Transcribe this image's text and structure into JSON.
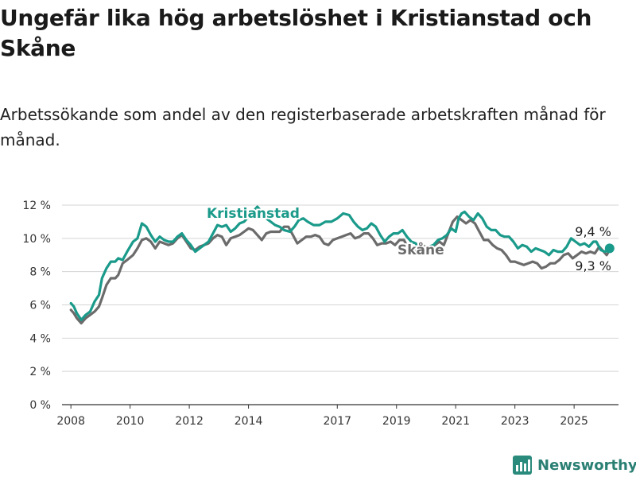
{
  "title": "Ungefär lika hög arbetslöshet i Kristianstad och Skåne",
  "subtitle": "Arbetssökande som andel av den registerbaserade arbetskraften månad för månad.",
  "brand": {
    "name": "Newsworthy",
    "icon": "newsworthy-chart-logo",
    "color": "#2a8a7c"
  },
  "chart_data": {
    "type": "line",
    "title": "Ungefär lika hög arbetslöshet i Kristianstad och Skåne",
    "subtitle": "Arbetssökande som andel av den registerbaserade arbetskraften månad för månad.",
    "xlabel": "",
    "ylabel": "",
    "x_range": [
      2007.7,
      2026.5
    ],
    "ylim": [
      0,
      12
    ],
    "y_ticks": [
      0,
      2,
      4,
      6,
      8,
      10,
      12
    ],
    "y_tick_labels": [
      "0 %",
      "2 %",
      "4 %",
      "6 %",
      "8 %",
      "10 %",
      "12 %"
    ],
    "x_ticks": [
      2008,
      2010,
      2012,
      2014,
      2017,
      2019,
      2021,
      2023,
      2025
    ],
    "x_tick_labels": [
      "2008",
      "2010",
      "2012",
      "2014",
      "2017",
      "2019",
      "2021",
      "2023",
      "2025"
    ],
    "grid": "horizontal",
    "legend": "direct labels",
    "series": [
      {
        "name": "Kristianstad",
        "color": "#1a9a8a",
        "end_label": "9,4 %",
        "points": [
          [
            2008.0,
            6.1
          ],
          [
            2008.1,
            5.9
          ],
          [
            2008.2,
            5.5
          ],
          [
            2008.35,
            5.1
          ],
          [
            2008.5,
            5.4
          ],
          [
            2008.65,
            5.6
          ],
          [
            2008.8,
            6.2
          ],
          [
            2008.95,
            6.6
          ],
          [
            2009.05,
            7.6
          ],
          [
            2009.2,
            8.2
          ],
          [
            2009.35,
            8.6
          ],
          [
            2009.5,
            8.6
          ],
          [
            2009.6,
            8.8
          ],
          [
            2009.75,
            8.7
          ],
          [
            2009.9,
            9.2
          ],
          [
            2010.1,
            9.8
          ],
          [
            2010.25,
            10.0
          ],
          [
            2010.4,
            10.9
          ],
          [
            2010.55,
            10.7
          ],
          [
            2010.7,
            10.2
          ],
          [
            2010.85,
            9.8
          ],
          [
            2011.0,
            10.1
          ],
          [
            2011.15,
            9.9
          ],
          [
            2011.3,
            9.8
          ],
          [
            2011.45,
            9.8
          ],
          [
            2011.6,
            10.1
          ],
          [
            2011.75,
            10.3
          ],
          [
            2011.9,
            9.9
          ],
          [
            2012.05,
            9.6
          ],
          [
            2012.2,
            9.2
          ],
          [
            2012.35,
            9.4
          ],
          [
            2012.5,
            9.6
          ],
          [
            2012.65,
            9.8
          ],
          [
            2012.8,
            10.3
          ],
          [
            2012.95,
            10.8
          ],
          [
            2013.1,
            10.7
          ],
          [
            2013.25,
            10.8
          ],
          [
            2013.4,
            10.4
          ],
          [
            2013.55,
            10.6
          ],
          [
            2013.7,
            10.9
          ],
          [
            2013.85,
            11.0
          ],
          [
            2014.0,
            11.3
          ],
          [
            2014.15,
            11.6
          ],
          [
            2014.3,
            11.9
          ],
          [
            2014.45,
            11.6
          ],
          [
            2014.6,
            11.2
          ],
          [
            2014.75,
            11.0
          ],
          [
            2014.9,
            10.8
          ],
          [
            2015.05,
            10.7
          ],
          [
            2015.2,
            10.5
          ],
          [
            2015.4,
            10.4
          ],
          [
            2015.55,
            10.7
          ],
          [
            2015.7,
            11.1
          ],
          [
            2015.85,
            11.2
          ],
          [
            2016.0,
            11.0
          ],
          [
            2016.2,
            10.8
          ],
          [
            2016.4,
            10.8
          ],
          [
            2016.6,
            11.0
          ],
          [
            2016.8,
            11.0
          ],
          [
            2017.0,
            11.2
          ],
          [
            2017.2,
            11.5
          ],
          [
            2017.4,
            11.4
          ],
          [
            2017.55,
            11.0
          ],
          [
            2017.7,
            10.7
          ],
          [
            2017.85,
            10.5
          ],
          [
            2018.0,
            10.6
          ],
          [
            2018.15,
            10.9
          ],
          [
            2018.3,
            10.7
          ],
          [
            2018.45,
            10.2
          ],
          [
            2018.6,
            9.8
          ],
          [
            2018.75,
            10.1
          ],
          [
            2018.9,
            10.3
          ],
          [
            2019.05,
            10.3
          ],
          [
            2019.2,
            10.5
          ],
          [
            2019.35,
            10.1
          ],
          [
            2019.5,
            9.8
          ],
          [
            2019.65,
            9.7
          ],
          [
            2019.8,
            9.3
          ],
          [
            2019.95,
            9.4
          ],
          [
            2020.1,
            9.5
          ],
          [
            2020.25,
            9.6
          ],
          [
            2020.4,
            9.9
          ],
          [
            2020.55,
            10.0
          ],
          [
            2020.7,
            10.2
          ],
          [
            2020.85,
            10.6
          ],
          [
            2021.0,
            10.4
          ],
          [
            2021.1,
            11.2
          ],
          [
            2021.2,
            11.5
          ],
          [
            2021.3,
            11.6
          ],
          [
            2021.45,
            11.3
          ],
          [
            2021.6,
            11.1
          ],
          [
            2021.75,
            11.5
          ],
          [
            2021.9,
            11.2
          ],
          [
            2022.05,
            10.7
          ],
          [
            2022.2,
            10.5
          ],
          [
            2022.35,
            10.5
          ],
          [
            2022.5,
            10.2
          ],
          [
            2022.65,
            10.1
          ],
          [
            2022.8,
            10.1
          ],
          [
            2022.95,
            9.8
          ],
          [
            2023.1,
            9.4
          ],
          [
            2023.25,
            9.6
          ],
          [
            2023.4,
            9.5
          ],
          [
            2023.55,
            9.2
          ],
          [
            2023.7,
            9.4
          ],
          [
            2023.85,
            9.3
          ],
          [
            2024.0,
            9.2
          ],
          [
            2024.15,
            9.0
          ],
          [
            2024.3,
            9.3
          ],
          [
            2024.45,
            9.2
          ],
          [
            2024.6,
            9.2
          ],
          [
            2024.75,
            9.5
          ],
          [
            2024.9,
            10.0
          ],
          [
            2025.05,
            9.8
          ],
          [
            2025.2,
            9.6
          ],
          [
            2025.35,
            9.7
          ],
          [
            2025.5,
            9.5
          ],
          [
            2025.65,
            9.8
          ],
          [
            2025.75,
            9.8
          ],
          [
            2025.9,
            9.3
          ],
          [
            2026.05,
            9.2
          ],
          [
            2026.2,
            9.4
          ]
        ]
      },
      {
        "name": "Skåne",
        "color": "#6b6b6b",
        "end_label": "9,3 %",
        "points": [
          [
            2008.0,
            5.7
          ],
          [
            2008.1,
            5.5
          ],
          [
            2008.2,
            5.2
          ],
          [
            2008.35,
            4.9
          ],
          [
            2008.5,
            5.2
          ],
          [
            2008.65,
            5.4
          ],
          [
            2008.8,
            5.6
          ],
          [
            2008.95,
            5.9
          ],
          [
            2009.05,
            6.4
          ],
          [
            2009.2,
            7.2
          ],
          [
            2009.35,
            7.6
          ],
          [
            2009.5,
            7.6
          ],
          [
            2009.6,
            7.8
          ],
          [
            2009.75,
            8.5
          ],
          [
            2009.9,
            8.7
          ],
          [
            2010.1,
            9.0
          ],
          [
            2010.25,
            9.4
          ],
          [
            2010.4,
            9.9
          ],
          [
            2010.55,
            10.0
          ],
          [
            2010.7,
            9.8
          ],
          [
            2010.85,
            9.4
          ],
          [
            2011.0,
            9.8
          ],
          [
            2011.15,
            9.7
          ],
          [
            2011.3,
            9.6
          ],
          [
            2011.45,
            9.7
          ],
          [
            2011.6,
            10.0
          ],
          [
            2011.75,
            10.2
          ],
          [
            2011.9,
            9.8
          ],
          [
            2012.05,
            9.4
          ],
          [
            2012.2,
            9.3
          ],
          [
            2012.35,
            9.5
          ],
          [
            2012.5,
            9.6
          ],
          [
            2012.65,
            9.7
          ],
          [
            2012.8,
            10.0
          ],
          [
            2012.95,
            10.2
          ],
          [
            2013.1,
            10.1
          ],
          [
            2013.25,
            9.6
          ],
          [
            2013.4,
            10.0
          ],
          [
            2013.55,
            10.1
          ],
          [
            2013.7,
            10.2
          ],
          [
            2013.85,
            10.4
          ],
          [
            2014.0,
            10.6
          ],
          [
            2014.15,
            10.5
          ],
          [
            2014.3,
            10.2
          ],
          [
            2014.45,
            9.9
          ],
          [
            2014.6,
            10.3
          ],
          [
            2014.75,
            10.4
          ],
          [
            2014.9,
            10.4
          ],
          [
            2015.05,
            10.4
          ],
          [
            2015.2,
            10.7
          ],
          [
            2015.35,
            10.7
          ],
          [
            2015.5,
            10.2
          ],
          [
            2015.65,
            9.7
          ],
          [
            2015.8,
            9.9
          ],
          [
            2015.95,
            10.1
          ],
          [
            2016.1,
            10.1
          ],
          [
            2016.25,
            10.2
          ],
          [
            2016.4,
            10.1
          ],
          [
            2016.55,
            9.7
          ],
          [
            2016.7,
            9.6
          ],
          [
            2016.85,
            9.9
          ],
          [
            2017.0,
            10.0
          ],
          [
            2017.15,
            10.1
          ],
          [
            2017.3,
            10.2
          ],
          [
            2017.45,
            10.3
          ],
          [
            2017.6,
            10.0
          ],
          [
            2017.75,
            10.1
          ],
          [
            2017.9,
            10.3
          ],
          [
            2018.05,
            10.3
          ],
          [
            2018.2,
            10.0
          ],
          [
            2018.35,
            9.6
          ],
          [
            2018.5,
            9.7
          ],
          [
            2018.65,
            9.7
          ],
          [
            2018.8,
            9.8
          ],
          [
            2018.95,
            9.6
          ],
          [
            2019.1,
            9.9
          ],
          [
            2019.25,
            9.9
          ],
          [
            2019.4,
            9.4
          ],
          [
            2019.55,
            9.3
          ],
          [
            2019.7,
            9.2
          ],
          [
            2019.85,
            9.6
          ],
          [
            2020.0,
            9.5
          ],
          [
            2020.15,
            9.4
          ],
          [
            2020.3,
            9.6
          ],
          [
            2020.45,
            9.8
          ],
          [
            2020.6,
            9.6
          ],
          [
            2020.75,
            10.3
          ],
          [
            2020.9,
            11.0
          ],
          [
            2021.05,
            11.3
          ],
          [
            2021.2,
            11.1
          ],
          [
            2021.35,
            10.9
          ],
          [
            2021.5,
            11.1
          ],
          [
            2021.65,
            10.9
          ],
          [
            2021.8,
            10.4
          ],
          [
            2021.95,
            9.9
          ],
          [
            2022.1,
            9.9
          ],
          [
            2022.25,
            9.6
          ],
          [
            2022.4,
            9.4
          ],
          [
            2022.55,
            9.3
          ],
          [
            2022.7,
            9.0
          ],
          [
            2022.85,
            8.6
          ],
          [
            2023.0,
            8.6
          ],
          [
            2023.15,
            8.5
          ],
          [
            2023.3,
            8.4
          ],
          [
            2023.45,
            8.5
          ],
          [
            2023.6,
            8.6
          ],
          [
            2023.75,
            8.5
          ],
          [
            2023.9,
            8.2
          ],
          [
            2024.05,
            8.3
          ],
          [
            2024.2,
            8.5
          ],
          [
            2024.35,
            8.5
          ],
          [
            2024.5,
            8.7
          ],
          [
            2024.65,
            9.0
          ],
          [
            2024.8,
            9.1
          ],
          [
            2024.95,
            8.8
          ],
          [
            2025.1,
            9.0
          ],
          [
            2025.25,
            9.2
          ],
          [
            2025.4,
            9.1
          ],
          [
            2025.55,
            9.2
          ],
          [
            2025.7,
            9.1
          ],
          [
            2025.85,
            9.5
          ],
          [
            2026.0,
            9.2
          ],
          [
            2026.1,
            9.0
          ],
          [
            2026.2,
            9.3
          ]
        ]
      }
    ]
  }
}
